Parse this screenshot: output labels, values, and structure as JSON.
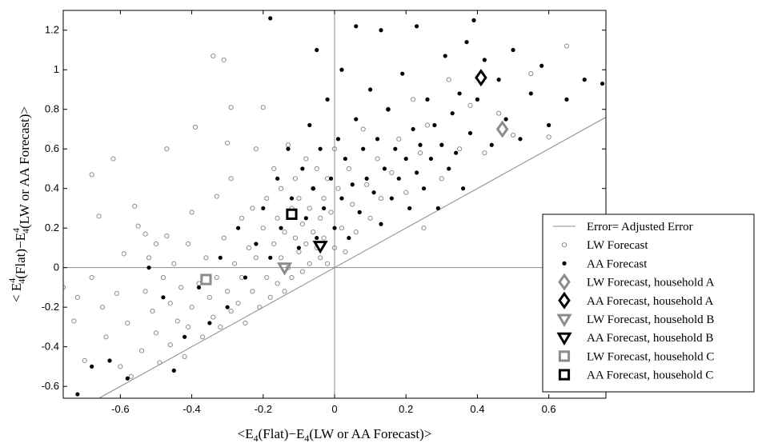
{
  "chart_data": {
    "type": "scatter",
    "xlim": [
      -0.76,
      0.76
    ],
    "ylim": [
      -0.66,
      1.3
    ],
    "x_ticks": [
      -0.6,
      -0.4,
      -0.2,
      0,
      0.2,
      0.4,
      0.6
    ],
    "x_tick_labels": [
      "-0.6",
      "-0.4",
      "-0.2",
      "0",
      "0.2",
      "0.4",
      "0.6"
    ],
    "y_ticks": [
      -0.6,
      -0.4,
      -0.2,
      0,
      0.2,
      0.4,
      0.6,
      0.8,
      1,
      1.2
    ],
    "y_tick_labels": [
      "-0.6",
      "-0.4",
      "-0.2",
      "0",
      "0.2",
      "0.4",
      "0.6",
      "0.8",
      "1",
      "1.2"
    ],
    "xlabel_parts": [
      {
        "t": "<E",
        "sub": false
      },
      {
        "t": "4",
        "sub": true
      },
      {
        "t": "(Flat)−E",
        "sub": false
      },
      {
        "t": "4",
        "sub": true
      },
      {
        "t": "(LW or AA Forecast)>",
        "sub": false
      }
    ],
    "ylabel_parts": [
      {
        "t": "< E",
        "sup": false,
        "sub": false
      },
      {
        "t": "4",
        "sup": true
      },
      {
        "t": "4",
        "sub": true
      },
      {
        "t": "(Flat)−E",
        "sup": false,
        "sub": false
      },
      {
        "t": "4",
        "sup": true
      },
      {
        "t": "4",
        "sub": true
      },
      {
        "t": "(LW or AA Forecast)>",
        "sup": false,
        "sub": false
      }
    ],
    "grid": false,
    "reference_lines": {
      "x0": true,
      "y0": true,
      "identity": true
    },
    "legend_position": "bottom-right",
    "legend": [
      {
        "label": "Error= Adjusted Error",
        "marker": "line",
        "color": "#8c8c8c"
      },
      {
        "label": "LW Forecast",
        "marker": "open-circle",
        "color": "#8c8c8c"
      },
      {
        "label": "AA Forecast",
        "marker": "filled-circle",
        "color": "#000000"
      },
      {
        "label": "LW Forecast, household A",
        "marker": "diamond",
        "color": "#8c8c8c"
      },
      {
        "label": "AA Forecast, household A",
        "marker": "diamond",
        "color": "#000000"
      },
      {
        "label": "LW Forecast, household B",
        "marker": "triangle-down",
        "color": "#8c8c8c"
      },
      {
        "label": "AA Forecast, household B",
        "marker": "triangle-down",
        "color": "#000000"
      },
      {
        "label": "LW Forecast, household C",
        "marker": "square",
        "color": "#8c8c8c"
      },
      {
        "label": "AA Forecast, household C",
        "marker": "square",
        "color": "#000000"
      }
    ],
    "series": [
      {
        "name": "LW Forecast",
        "marker": "open-circle",
        "color": "#8c8c8c",
        "points": [
          [
            -0.76,
            -0.1
          ],
          [
            -0.73,
            -0.27
          ],
          [
            -0.72,
            -0.15
          ],
          [
            -0.7,
            -0.47
          ],
          [
            -0.68,
            0.47
          ],
          [
            -0.68,
            -0.05
          ],
          [
            -0.66,
            0.26
          ],
          [
            -0.65,
            -0.2
          ],
          [
            -0.64,
            -0.35
          ],
          [
            -0.62,
            0.55
          ],
          [
            -0.61,
            -0.13
          ],
          [
            -0.6,
            -0.5
          ],
          [
            -0.59,
            0.07
          ],
          [
            -0.58,
            -0.28
          ],
          [
            -0.57,
            -0.55
          ],
          [
            -0.56,
            0.31
          ],
          [
            -0.55,
            0.21
          ],
          [
            -0.54,
            -0.42
          ],
          [
            -0.53,
            -0.12
          ],
          [
            -0.52,
            0.05
          ],
          [
            -0.51,
            -0.22
          ],
          [
            -0.5,
            -0.33
          ],
          [
            -0.5,
            0.12
          ],
          [
            -0.49,
            -0.48
          ],
          [
            -0.48,
            -0.05
          ],
          [
            -0.47,
            0.16
          ],
          [
            -0.46,
            -0.18
          ],
          [
            -0.46,
            -0.39
          ],
          [
            -0.45,
            0.02
          ],
          [
            -0.44,
            -0.27
          ],
          [
            -0.43,
            -0.1
          ],
          [
            -0.42,
            -0.45
          ],
          [
            -0.41,
            0.12
          ],
          [
            -0.41,
            -0.3
          ],
          [
            -0.4,
            -0.2
          ],
          [
            -0.39,
            0.71
          ],
          [
            -0.38,
            -0.08
          ],
          [
            -0.37,
            -0.35
          ],
          [
            -0.36,
            0.05
          ],
          [
            -0.35,
            -0.15
          ],
          [
            -0.34,
            -0.25
          ],
          [
            -0.33,
            0.36
          ],
          [
            -0.33,
            -0.05
          ],
          [
            -0.32,
            -0.3
          ],
          [
            -0.31,
            0.15
          ],
          [
            -0.3,
            -0.12
          ],
          [
            -0.29,
            0.45
          ],
          [
            -0.29,
            -0.22
          ],
          [
            -0.28,
            0.02
          ],
          [
            -0.27,
            -0.18
          ],
          [
            -0.26,
            0.25
          ],
          [
            -0.26,
            -0.05
          ],
          [
            -0.25,
            -0.28
          ],
          [
            -0.24,
            0.1
          ],
          [
            -0.23,
            0.3
          ],
          [
            -0.23,
            -0.12
          ],
          [
            -0.22,
            0.6
          ],
          [
            -0.22,
            0.05
          ],
          [
            -0.21,
            -0.2
          ],
          [
            -0.2,
            0.81
          ],
          [
            -0.2,
            0.2
          ],
          [
            -0.19,
            -0.05
          ],
          [
            -0.19,
            0.35
          ],
          [
            -0.18,
            -0.15
          ],
          [
            -0.17,
            0.12
          ],
          [
            -0.17,
            0.5
          ],
          [
            -0.16,
            -0.08
          ],
          [
            -0.16,
            0.25
          ],
          [
            -0.15,
            0.05
          ],
          [
            -0.15,
            0.4
          ],
          [
            -0.14,
            -0.12
          ],
          [
            -0.14,
            0.18
          ],
          [
            -0.13,
            0.62
          ],
          [
            -0.13,
            0.0
          ],
          [
            -0.12,
            0.3
          ],
          [
            -0.12,
            -0.05
          ],
          [
            -0.11,
            0.15
          ],
          [
            -0.11,
            0.45
          ],
          [
            -0.1,
            0.08
          ],
          [
            -0.1,
            0.35
          ],
          [
            -0.09,
            -0.02
          ],
          [
            -0.09,
            0.22
          ],
          [
            -0.08,
            0.55
          ],
          [
            -0.08,
            0.12
          ],
          [
            -0.07,
            0.3
          ],
          [
            -0.07,
            0.02
          ],
          [
            -0.06,
            0.4
          ],
          [
            -0.06,
            0.18
          ],
          [
            -0.05,
            0.1
          ],
          [
            -0.05,
            0.5
          ],
          [
            -0.04,
            0.25
          ],
          [
            -0.04,
            0.05
          ],
          [
            -0.03,
            0.35
          ],
          [
            -0.03,
            0.15
          ],
          [
            -0.02,
            0.45
          ],
          [
            -0.02,
            0.02
          ],
          [
            -0.01,
            0.28
          ],
          [
            0.0,
            0.6
          ],
          [
            0.0,
            0.1
          ],
          [
            0.01,
            0.4
          ],
          [
            0.02,
            0.2
          ],
          [
            0.03,
            0.08
          ],
          [
            0.04,
            0.5
          ],
          [
            0.05,
            0.32
          ],
          [
            0.06,
            0.18
          ],
          [
            0.08,
            0.7
          ],
          [
            0.09,
            0.42
          ],
          [
            0.1,
            0.25
          ],
          [
            0.12,
            0.55
          ],
          [
            0.13,
            0.35
          ],
          [
            0.15,
            0.8
          ],
          [
            0.16,
            0.48
          ],
          [
            0.18,
            0.65
          ],
          [
            0.2,
            0.38
          ],
          [
            0.22,
            0.85
          ],
          [
            0.24,
            0.58
          ],
          [
            0.25,
            0.2
          ],
          [
            0.26,
            0.72
          ],
          [
            0.3,
            0.45
          ],
          [
            0.32,
            0.95
          ],
          [
            0.35,
            0.6
          ],
          [
            0.38,
            0.82
          ],
          [
            0.42,
            0.58
          ],
          [
            0.46,
            0.78
          ],
          [
            0.5,
            0.67
          ],
          [
            0.55,
            0.98
          ],
          [
            0.6,
            0.66
          ],
          [
            0.65,
            1.12
          ],
          [
            -0.34,
            1.07
          ],
          [
            -0.31,
            1.05
          ],
          [
            -0.29,
            0.81
          ],
          [
            -0.4,
            0.28
          ],
          [
            -0.47,
            0.6
          ],
          [
            -0.53,
            0.17
          ],
          [
            -0.3,
            0.63
          ]
        ]
      },
      {
        "name": "AA Forecast",
        "marker": "filled-circle",
        "color": "#000000",
        "points": [
          [
            -0.72,
            -0.64
          ],
          [
            -0.68,
            -0.5
          ],
          [
            -0.63,
            -0.47
          ],
          [
            -0.58,
            -0.56
          ],
          [
            -0.52,
            0.0
          ],
          [
            -0.48,
            -0.15
          ],
          [
            -0.45,
            -0.52
          ],
          [
            -0.42,
            -0.35
          ],
          [
            -0.38,
            -0.1
          ],
          [
            -0.35,
            -0.28
          ],
          [
            -0.32,
            0.05
          ],
          [
            -0.3,
            -0.2
          ],
          [
            -0.27,
            0.2
          ],
          [
            -0.25,
            -0.05
          ],
          [
            -0.22,
            0.12
          ],
          [
            -0.2,
            0.3
          ],
          [
            -0.18,
            0.05
          ],
          [
            -0.16,
            0.45
          ],
          [
            -0.15,
            0.2
          ],
          [
            -0.13,
            0.6
          ],
          [
            -0.12,
            0.35
          ],
          [
            -0.1,
            0.1
          ],
          [
            -0.09,
            0.5
          ],
          [
            -0.08,
            0.25
          ],
          [
            -0.07,
            0.72
          ],
          [
            -0.06,
            0.4
          ],
          [
            -0.05,
            0.15
          ],
          [
            -0.04,
            0.6
          ],
          [
            -0.03,
            0.3
          ],
          [
            -0.02,
            0.85
          ],
          [
            -0.01,
            0.45
          ],
          [
            0.0,
            0.2
          ],
          [
            0.01,
            0.65
          ],
          [
            0.02,
            0.35
          ],
          [
            0.03,
            0.55
          ],
          [
            0.04,
            0.15
          ],
          [
            0.05,
            0.42
          ],
          [
            0.06,
            0.75
          ],
          [
            0.07,
            0.28
          ],
          [
            0.08,
            0.6
          ],
          [
            0.09,
            0.45
          ],
          [
            0.1,
            0.9
          ],
          [
            0.11,
            0.38
          ],
          [
            0.12,
            0.65
          ],
          [
            0.13,
            0.22
          ],
          [
            0.14,
            0.5
          ],
          [
            0.15,
            0.8
          ],
          [
            0.16,
            0.35
          ],
          [
            0.17,
            0.6
          ],
          [
            0.18,
            0.45
          ],
          [
            0.19,
            0.98
          ],
          [
            0.2,
            0.55
          ],
          [
            0.21,
            0.3
          ],
          [
            0.22,
            0.7
          ],
          [
            0.23,
            0.48
          ],
          [
            0.24,
            0.62
          ],
          [
            0.25,
            0.4
          ],
          [
            0.26,
            0.85
          ],
          [
            0.27,
            0.55
          ],
          [
            0.28,
            0.72
          ],
          [
            0.29,
            0.3
          ],
          [
            0.3,
            0.62
          ],
          [
            0.31,
            1.07
          ],
          [
            0.32,
            0.5
          ],
          [
            0.33,
            0.78
          ],
          [
            0.34,
            0.58
          ],
          [
            0.35,
            0.88
          ],
          [
            0.36,
            0.4
          ],
          [
            0.37,
            1.14
          ],
          [
            0.38,
            0.68
          ],
          [
            0.39,
            1.25
          ],
          [
            0.4,
            0.85
          ],
          [
            0.42,
            1.05
          ],
          [
            0.44,
            0.62
          ],
          [
            0.46,
            0.95
          ],
          [
            0.48,
            0.75
          ],
          [
            0.5,
            1.1
          ],
          [
            0.52,
            0.65
          ],
          [
            0.55,
            0.88
          ],
          [
            0.58,
            1.02
          ],
          [
            0.6,
            0.72
          ],
          [
            0.65,
            0.85
          ],
          [
            0.7,
            0.95
          ],
          [
            0.75,
            0.93
          ],
          [
            -0.18,
            1.26
          ],
          [
            0.06,
            1.22
          ],
          [
            -0.05,
            1.1
          ],
          [
            0.02,
            1.0
          ],
          [
            0.13,
            1.2
          ],
          [
            0.23,
            1.22
          ]
        ]
      },
      {
        "name": "LW Forecast, household A",
        "marker": "diamond",
        "color": "#8c8c8c",
        "points": [
          [
            0.47,
            0.7
          ]
        ]
      },
      {
        "name": "AA Forecast, household A",
        "marker": "diamond",
        "color": "#000000",
        "points": [
          [
            0.41,
            0.96
          ]
        ]
      },
      {
        "name": "LW Forecast, household B",
        "marker": "triangle-down",
        "color": "#8c8c8c",
        "points": [
          [
            -0.14,
            0.0
          ]
        ]
      },
      {
        "name": "AA Forecast, household B",
        "marker": "triangle-down",
        "color": "#000000",
        "points": [
          [
            -0.04,
            0.11
          ]
        ]
      },
      {
        "name": "LW Forecast, household C",
        "marker": "square",
        "color": "#8c8c8c",
        "points": [
          [
            -0.36,
            -0.06
          ]
        ]
      },
      {
        "name": "AA Forecast, household C",
        "marker": "square",
        "color": "#000000",
        "points": [
          [
            -0.12,
            0.27
          ]
        ]
      }
    ]
  }
}
